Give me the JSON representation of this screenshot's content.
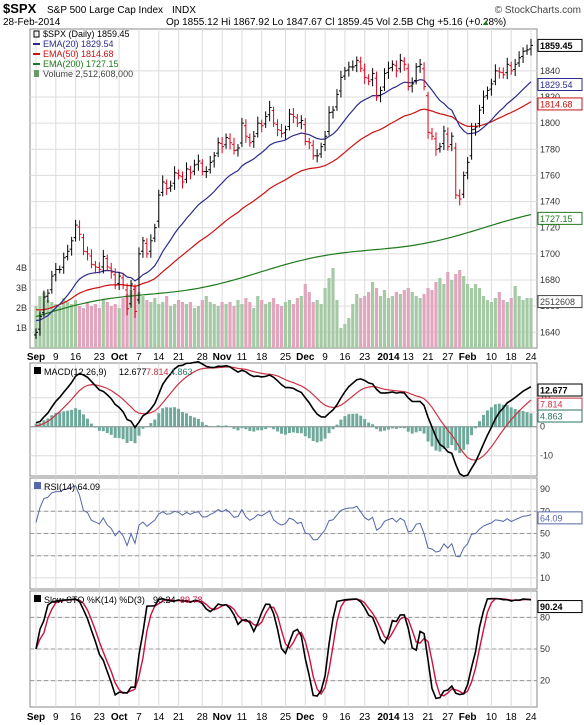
{
  "header": {
    "symbol": "$SPX",
    "name": "S&P 500 Large Cap Index",
    "exchange": "INDX",
    "date": "28-Feb-2014",
    "quote": "Op 1855.12  Hi 1867.92  Lo 1847.67  Cl 1859.45  Vol 2.5B  Chg +5.16 (+0.28%)",
    "quote_arrow": "▲",
    "watermark": "© StockCharts.com"
  },
  "colors": {
    "up_bar": "#000000",
    "down_bar": "#e0001b",
    "ema20": "#2b2b8c",
    "ema50": "#cc1111",
    "ema200": "#1d7a1d",
    "vol_up": "#a4c9a4",
    "vol_down": "#e0a6bd",
    "macd_line": "#000000",
    "signal_line": "#cc3344",
    "histogram": "#6fa99c",
    "rsi_line": "#5566aa",
    "sto_k": "#000000",
    "sto_d": "#cc1144",
    "frame": "#888888",
    "grid": "#dcdcdc"
  },
  "chart_data": [
    {
      "type": "ohlc",
      "panel": "price",
      "legend": [
        "$SPX (Daily) 1859.45",
        "EMA(20) 1829.54",
        "EMA(50) 1814.68",
        "EMA(200) 1727.15",
        "Volume 2,512,608,000"
      ],
      "x_labels": [
        "Sep",
        "9",
        "16",
        "23",
        "Oct",
        "7",
        "14",
        "21",
        "28",
        "Nov",
        "11",
        "18",
        "25",
        "Dec",
        "9",
        "16",
        "23",
        "2014",
        "13",
        "21",
        "27",
        "Feb",
        "10",
        "18",
        "24"
      ],
      "y_ticks": [
        1640,
        1660,
        1680,
        1700,
        1720,
        1740,
        1760,
        1780,
        1800,
        1820,
        1840
      ],
      "ylim": [
        1628,
        1872
      ],
      "volume_ticks": [
        "1B",
        "2B",
        "3B",
        "4B"
      ],
      "volume_scale_max": 5.0,
      "last_value_tags": [
        {
          "label": "1859.45",
          "value": 1859.45,
          "color": "#000000"
        },
        {
          "label": "1829.54",
          "value": 1829.54,
          "color": "#2b2b8c"
        },
        {
          "label": "1814.68",
          "value": 1814.68,
          "color": "#cc1111"
        },
        {
          "label": "1727.15",
          "value": 1727.15,
          "color": "#1d7a1d"
        },
        {
          "label": "2512608",
          "value": 1663.5,
          "color": "#444444"
        }
      ],
      "close": [
        1640,
        1652,
        1667,
        1670,
        1683,
        1688,
        1688,
        1697,
        1702,
        1710,
        1722,
        1715,
        1702,
        1700,
        1692,
        1690,
        1688,
        1698,
        1690,
        1686,
        1676,
        1683,
        1676,
        1658,
        1677,
        1656,
        1700,
        1710,
        1700,
        1710,
        1720,
        1745,
        1755,
        1750,
        1752,
        1762,
        1760,
        1755,
        1765,
        1762,
        1768,
        1771,
        1763,
        1763,
        1770,
        1775,
        1785,
        1782,
        1789,
        1785,
        1779,
        1781,
        1800,
        1790,
        1785,
        1790,
        1800,
        1798,
        1805,
        1812,
        1800,
        1795,
        1792,
        1795,
        1807,
        1805,
        1800,
        1802,
        1786,
        1785,
        1775,
        1775,
        1782,
        1790,
        1808,
        1810,
        1822,
        1835,
        1840,
        1843,
        1843,
        1848,
        1842,
        1835,
        1832,
        1838,
        1820,
        1825,
        1838,
        1842,
        1845,
        1840,
        1848,
        1845,
        1828,
        1830,
        1843,
        1845,
        1828,
        1793,
        1790,
        1780,
        1782,
        1794,
        1782,
        1790,
        1745,
        1742,
        1760,
        1770,
        1795,
        1797,
        1810,
        1820,
        1825,
        1830,
        1840,
        1839,
        1837,
        1845,
        1840,
        1845,
        1850,
        1855,
        1856,
        1859.45
      ],
      "volume": [
        2.1,
        2.6,
        2.8,
        2.4,
        2.3,
        2.2,
        2.1,
        2.5,
        2.3,
        2.2,
        2.4,
        2.1,
        2.0,
        2.3,
        2.1,
        2.2,
        2.0,
        2.4,
        2.3,
        2.1,
        2.2,
        2.0,
        2.5,
        2.7,
        2.9,
        3.1,
        2.8,
        2.6,
        2.4,
        2.3,
        2.5,
        2.2,
        2.3,
        2.6,
        2.1,
        2.2,
        2.4,
        2.3,
        2.2,
        2.3,
        2.0,
        2.1,
        2.4,
        2.6,
        2.3,
        2.2,
        2.1,
        2.3,
        2.2,
        2.3,
        2.1,
        2.4,
        2.2,
        2.5,
        2.3,
        2.0,
        2.6,
        2.4,
        2.2,
        2.3,
        2.5,
        2.2,
        2.1,
        2.3,
        2.4,
        2.2,
        2.5,
        2.6,
        3.2,
        2.8,
        2.3,
        2.4,
        2.2,
        3.0,
        3.5,
        4.0,
        2.4,
        1.0,
        1.2,
        1.5,
        2.2,
        2.7,
        2.5,
        2.6,
        2.8,
        3.3,
        3.0,
        2.6,
        2.9,
        2.5,
        2.6,
        2.8,
        2.7,
        2.9,
        3.0,
        2.8,
        2.6,
        2.5,
        2.7,
        3.0,
        2.9,
        3.3,
        3.5,
        3.2,
        3.8,
        3.4,
        3.7,
        3.9,
        3.6,
        3.2,
        3.0,
        3.2,
        3.0,
        2.6,
        2.4,
        2.3,
        2.5,
        2.8,
        2.4,
        2.3,
        2.5,
        3.1,
        2.6,
        2.4,
        2.5,
        2.5
      ]
    },
    {
      "type": "line",
      "panel": "macd",
      "legend": [
        "MACD(12,26,9)",
        "12.677",
        "7.814",
        "4.863"
      ],
      "y_ticks": [
        -10,
        0,
        5,
        10
      ],
      "ylim": [
        -17,
        22
      ],
      "last_value_tags": [
        {
          "label": "12.677",
          "value": 12.677,
          "color": "#000000"
        },
        {
          "label": "7.814",
          "value": 7.814,
          "color": "#cc3344"
        },
        {
          "label": "4.863",
          "value": 3.7,
          "color": "#2a7766"
        }
      ]
    },
    {
      "type": "line",
      "panel": "rsi",
      "legend": [
        "RSI(14) 64.09"
      ],
      "y_ticks": [
        10,
        30,
        50,
        70,
        90
      ],
      "ylim": [
        0,
        100
      ],
      "overbought": 70,
      "oversold": 30,
      "last_value_tags": [
        {
          "label": "64.09",
          "value": 64.09,
          "color": "#5566aa"
        }
      ]
    },
    {
      "type": "line",
      "panel": "stochastic",
      "legend": [
        "Slow STO %K(14) %D(3)",
        "90.24",
        "89.78"
      ],
      "y_ticks": [
        20,
        50,
        80
      ],
      "ylim": [
        -5,
        105
      ],
      "last_value_tags": [
        {
          "label": "90.24",
          "value": 90.24,
          "color": "#000000"
        }
      ]
    }
  ]
}
